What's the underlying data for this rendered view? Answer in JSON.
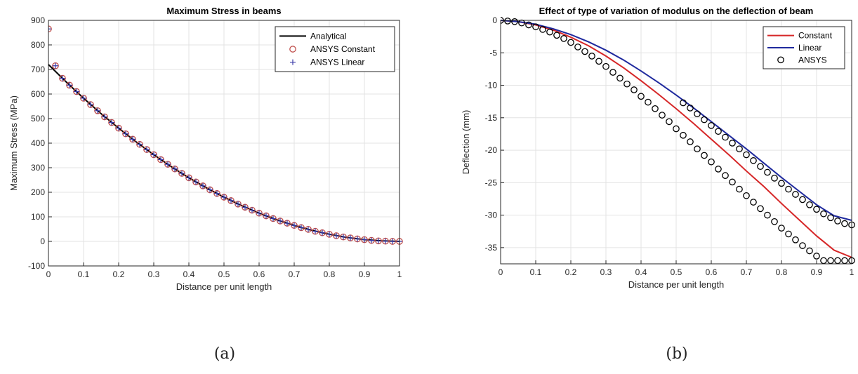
{
  "chart_data": [
    {
      "type": "line",
      "title": "Maximum Stress in beams",
      "xlabel": "Distance per unit length",
      "ylabel": "Maximum Stress (MPa)",
      "xlim": [
        0,
        1
      ],
      "ylim": [
        -100,
        900
      ],
      "xticks": [
        "0",
        "0.1",
        "0.2",
        "0.3",
        "0.4",
        "0.5",
        "0.6",
        "0.7",
        "0.8",
        "0.9",
        "1"
      ],
      "yticks": [
        "-100",
        "0",
        "100",
        "200",
        "300",
        "400",
        "500",
        "600",
        "700",
        "800",
        "900"
      ],
      "grid": true,
      "legend_position": "top-right",
      "caption": "(a)",
      "series": [
        {
          "name": "Analytical",
          "style": "line",
          "color": "#000000",
          "x": [
            0,
            0.05,
            0.1,
            0.15,
            0.2,
            0.25,
            0.3,
            0.35,
            0.4,
            0.45,
            0.5,
            0.55,
            0.6,
            0.65,
            0.7,
            0.75,
            0.8,
            0.85,
            0.9,
            0.95,
            1
          ],
          "y": [
            720,
            650,
            583,
            520,
            461,
            405,
            353,
            304,
            259,
            218,
            180,
            146,
            115,
            88,
            65,
            45,
            29,
            16,
            7,
            2,
            0
          ]
        },
        {
          "name": "ANSYS Constant",
          "style": "circle",
          "color": "#c0504d",
          "x": [
            0,
            0.02,
            0.04,
            0.06,
            0.08,
            0.1,
            0.12,
            0.14,
            0.16,
            0.18,
            0.2,
            0.22,
            0.24,
            0.26,
            0.28,
            0.3,
            0.32,
            0.34,
            0.36,
            0.38,
            0.4,
            0.42,
            0.44,
            0.46,
            0.48,
            0.5,
            0.52,
            0.54,
            0.56,
            0.58,
            0.6,
            0.62,
            0.64,
            0.66,
            0.68,
            0.7,
            0.72,
            0.74,
            0.76,
            0.78,
            0.8,
            0.82,
            0.84,
            0.86,
            0.88,
            0.9,
            0.92,
            0.94,
            0.96,
            0.98,
            1
          ],
          "y": [
            865,
            715,
            664,
            636,
            610,
            583,
            557,
            532,
            507,
            484,
            461,
            438,
            416,
            395,
            374,
            353,
            333,
            314,
            295,
            277,
            259,
            242,
            226,
            210,
            195,
            180,
            166,
            152,
            139,
            127,
            115,
            104,
            93,
            83,
            74,
            65,
            56,
            49,
            41,
            35,
            29,
            23,
            18,
            14,
            10,
            7,
            4,
            2,
            1,
            0,
            0
          ]
        },
        {
          "name": "ANSYS Linear",
          "style": "plus",
          "color": "#3a3aa8",
          "x": [
            0,
            0.02,
            0.04,
            0.06,
            0.08,
            0.1,
            0.12,
            0.14,
            0.16,
            0.18,
            0.2,
            0.22,
            0.24,
            0.26,
            0.28,
            0.3,
            0.32,
            0.34,
            0.36,
            0.38,
            0.4,
            0.42,
            0.44,
            0.46,
            0.48,
            0.5,
            0.52,
            0.54,
            0.56,
            0.58,
            0.6,
            0.62,
            0.64,
            0.66,
            0.68,
            0.7,
            0.72,
            0.74,
            0.76,
            0.78,
            0.8,
            0.82,
            0.84,
            0.86,
            0.88,
            0.9,
            0.92,
            0.94,
            0.96,
            0.98,
            1
          ],
          "y": [
            865,
            715,
            664,
            636,
            610,
            583,
            557,
            532,
            507,
            484,
            461,
            438,
            416,
            395,
            374,
            353,
            333,
            314,
            295,
            277,
            259,
            242,
            226,
            210,
            195,
            180,
            166,
            152,
            139,
            127,
            115,
            104,
            93,
            83,
            74,
            65,
            56,
            49,
            41,
            35,
            29,
            23,
            18,
            14,
            10,
            7,
            4,
            2,
            1,
            0,
            0
          ]
        }
      ]
    },
    {
      "type": "line",
      "title": "Effect of type of variation of modulus on the deflection of beam",
      "xlabel": "Distance per unit length",
      "ylabel": "Deflection (mm)",
      "xlim": [
        0,
        1
      ],
      "ylim": [
        -37.5,
        0
      ],
      "xticks": [
        "0",
        "0.1",
        "0.2",
        "0.3",
        "0.4",
        "0.5",
        "0.6",
        "0.7",
        "0.8",
        "0.9",
        "1"
      ],
      "yticks": [
        "0",
        "-5",
        "-10",
        "-15",
        "-20",
        "-25",
        "-30",
        "-35"
      ],
      "grid": true,
      "legend_position": "top-right",
      "caption": "(b)",
      "series": [
        {
          "name": "Constant",
          "style": "line",
          "color": "#d62728",
          "x": [
            0,
            0.05,
            0.1,
            0.15,
            0.2,
            0.25,
            0.3,
            0.35,
            0.4,
            0.45,
            0.5,
            0.55,
            0.6,
            0.65,
            0.7,
            0.75,
            0.8,
            0.85,
            0.9,
            0.95,
            1
          ],
          "y": [
            0,
            -0.2,
            -0.7,
            -1.5,
            -2.6,
            -3.9,
            -5.5,
            -7.3,
            -9.3,
            -11.4,
            -13.6,
            -15.9,
            -18.3,
            -20.7,
            -23.2,
            -25.6,
            -28.2,
            -30.7,
            -33.2,
            -35.4,
            -36.5
          ]
        },
        {
          "name": "Linear",
          "style": "line",
          "color": "#1f2a9e",
          "x": [
            0,
            0.05,
            0.1,
            0.15,
            0.2,
            0.25,
            0.3,
            0.35,
            0.4,
            0.45,
            0.5,
            0.55,
            0.6,
            0.65,
            0.7,
            0.75,
            0.8,
            0.85,
            0.9,
            0.95,
            1
          ],
          "y": [
            0,
            -0.2,
            -0.6,
            -1.3,
            -2.2,
            -3.3,
            -4.6,
            -6.1,
            -7.8,
            -9.6,
            -11.5,
            -13.5,
            -15.6,
            -17.7,
            -19.8,
            -22.0,
            -24.2,
            -26.3,
            -28.4,
            -30.1,
            -30.8
          ]
        },
        {
          "name": "ANSYS",
          "style": "circle",
          "color": "#000000",
          "x": [
            0,
            0.02,
            0.04,
            0.06,
            0.08,
            0.1,
            0.12,
            0.14,
            0.16,
            0.18,
            0.2,
            0.22,
            0.24,
            0.26,
            0.28,
            0.3,
            0.32,
            0.34,
            0.36,
            0.38,
            0.4,
            0.42,
            0.44,
            0.46,
            0.48,
            0.5,
            0.52,
            0.54,
            0.56,
            0.58,
            0.6,
            0.62,
            0.64,
            0.66,
            0.68,
            0.7,
            0.72,
            0.74,
            0.76,
            0.78,
            0.8,
            0.82,
            0.84,
            0.86,
            0.88,
            0.9,
            0.92,
            0.94,
            0.96,
            0.98,
            1,
            0.52,
            0.54,
            0.56,
            0.58,
            0.6,
            0.62,
            0.64,
            0.66,
            0.68,
            0.7,
            0.72,
            0.74,
            0.76,
            0.78,
            0.8,
            0.82,
            0.84,
            0.86,
            0.88,
            0.9,
            0.92,
            0.94,
            0.96,
            0.98,
            1
          ],
          "y": [
            0,
            -0.1,
            -0.2,
            -0.4,
            -0.7,
            -1.0,
            -1.4,
            -1.8,
            -2.3,
            -2.8,
            -3.4,
            -4.1,
            -4.8,
            -5.5,
            -6.3,
            -7.1,
            -8.0,
            -8.9,
            -9.8,
            -10.7,
            -11.7,
            -12.6,
            -13.6,
            -14.6,
            -15.6,
            -16.7,
            -17.7,
            -18.7,
            -19.8,
            -20.8,
            -21.8,
            -22.9,
            -23.9,
            -24.9,
            -26.0,
            -27.0,
            -28.0,
            -29.0,
            -30.0,
            -31.0,
            -32.0,
            -32.9,
            -33.8,
            -34.7,
            -35.5,
            -36.3,
            -37.0,
            -37.0,
            -37.0,
            -37.0,
            -37.0,
            -12.7,
            -13.5,
            -14.4,
            -15.3,
            -16.2,
            -17.1,
            -18.0,
            -18.9,
            -19.8,
            -20.7,
            -21.6,
            -22.5,
            -23.4,
            -24.3,
            -25.1,
            -26.0,
            -26.8,
            -27.6,
            -28.4,
            -29.1,
            -29.8,
            -30.4,
            -30.9,
            -31.3,
            -31.5
          ]
        }
      ]
    }
  ]
}
